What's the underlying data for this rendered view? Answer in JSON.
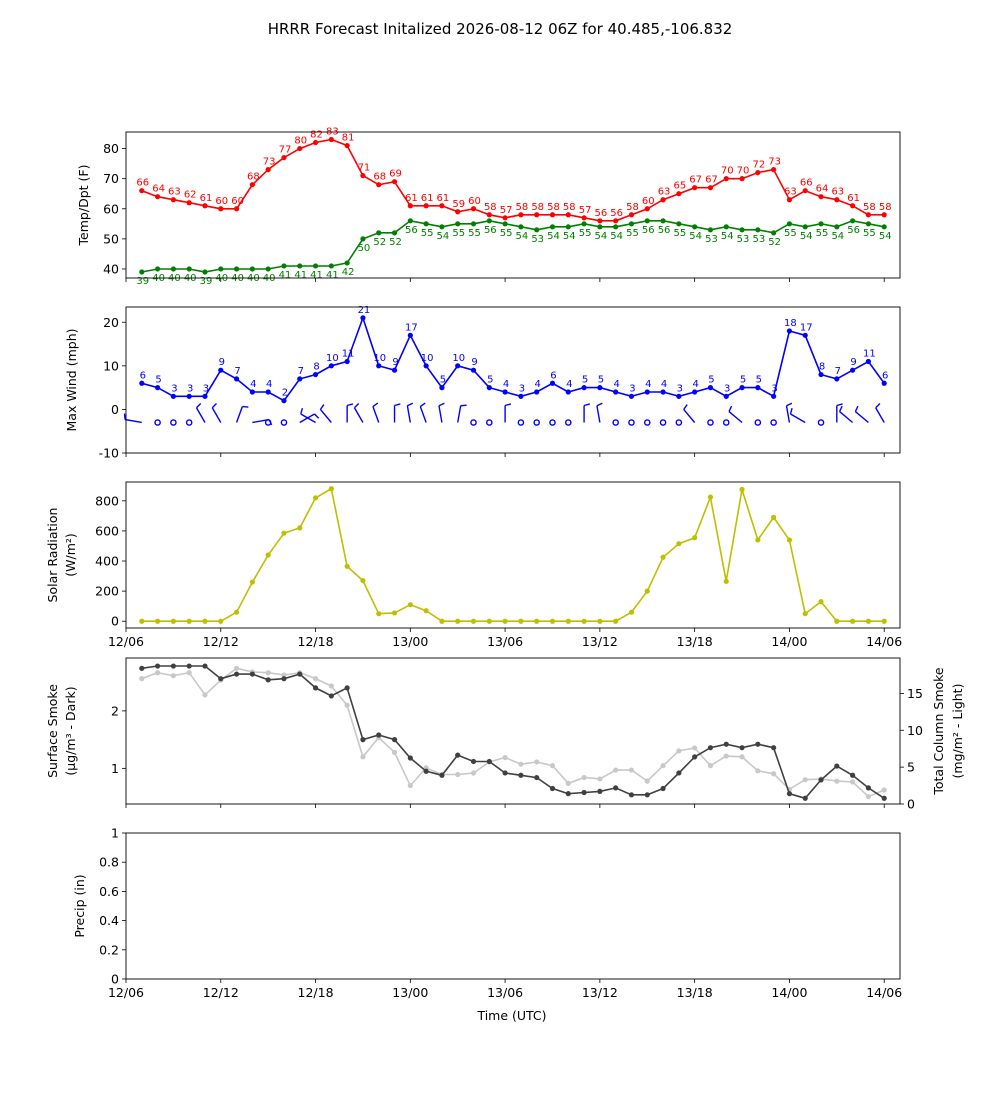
{
  "title": "HRRR Forecast Initalized 2026-08-12 06Z for 40.485,-106.832",
  "x_tick_labels": [
    "12/06",
    "12/12",
    "12/18",
    "13/00",
    "13/06",
    "13/12",
    "13/18",
    "14/00",
    "14/06"
  ],
  "x_axis_label": "Time (UTC)",
  "colors": {
    "temp": "#ff0000",
    "dewpoint": "#008000",
    "wind": "#0000ff",
    "solar": "#bfbf00",
    "smoke_surface": "#404040",
    "smoke_column": "#c8c8c8"
  },
  "chart_data": [
    {
      "type": "line",
      "panel": "temperature",
      "ylabel": "Temp/Dpt (F)",
      "ylim": [
        37,
        85.5
      ],
      "yticks": [
        40,
        50,
        60,
        70,
        80
      ],
      "x_hours": [
        1,
        2,
        3,
        4,
        5,
        6,
        7,
        8,
        9,
        10,
        11,
        12,
        13,
        14,
        15,
        16,
        17,
        18,
        19,
        20,
        21,
        22,
        23,
        24,
        25,
        26,
        27,
        28,
        29,
        30,
        31,
        32,
        33,
        34,
        35,
        36,
        37,
        38,
        39,
        40,
        41,
        42,
        43,
        44,
        45,
        46,
        47,
        48
      ],
      "series": [
        {
          "key": "temp",
          "labels_position": "above",
          "values": [
            66,
            64,
            63,
            62,
            61,
            60,
            60,
            68,
            73,
            77,
            80,
            82,
            83,
            81,
            71,
            68,
            69,
            61,
            61,
            61,
            59,
            60,
            58,
            57,
            58,
            58,
            58,
            58,
            57,
            56,
            56,
            58,
            60,
            63,
            65,
            67,
            67,
            70,
            70,
            72,
            73,
            63,
            66,
            64,
            63,
            61,
            58,
            58
          ]
        },
        {
          "key": "dewpoint",
          "labels_position": "below",
          "values": [
            39,
            40,
            40,
            40,
            39,
            40,
            40,
            40,
            40,
            41,
            41,
            41,
            41,
            42,
            50,
            52,
            52,
            56,
            55,
            54,
            55,
            55,
            56,
            55,
            54,
            53,
            54,
            54,
            55,
            54,
            54,
            55,
            56,
            56,
            55,
            54,
            53,
            54,
            53,
            53,
            52,
            55,
            54,
            55,
            54,
            56,
            55,
            54
          ]
        }
      ]
    },
    {
      "type": "line",
      "panel": "wind",
      "ylabel": "Max Wind (mph)",
      "ylim": [
        -10,
        23.5
      ],
      "yticks": [
        -10,
        0,
        10,
        20
      ],
      "x_hours": [
        1,
        2,
        3,
        4,
        5,
        6,
        7,
        8,
        9,
        10,
        11,
        12,
        13,
        14,
        15,
        16,
        17,
        18,
        19,
        20,
        21,
        22,
        23,
        24,
        25,
        26,
        27,
        28,
        29,
        30,
        31,
        32,
        33,
        34,
        35,
        36,
        37,
        38,
        39,
        40,
        41,
        42,
        43,
        44,
        45,
        46,
        47,
        48
      ],
      "series": [
        {
          "key": "wind",
          "labels_position": "above",
          "values": [
            6,
            5,
            3,
            3,
            3,
            9,
            7,
            4,
            4,
            2,
            7,
            8,
            10,
            11,
            21,
            10,
            9,
            17,
            10,
            5,
            10,
            9,
            5,
            4,
            3,
            4,
            6,
            4,
            5,
            5,
            4,
            3,
            4,
            4,
            3,
            4,
            5,
            3,
            5,
            5,
            3,
            18,
            17,
            8,
            7,
            9,
            11,
            6
          ]
        }
      ],
      "barb_directions_deg": [
        280,
        0,
        0,
        0,
        330,
        330,
        20,
        80,
        0,
        0,
        60,
        300,
        320,
        0,
        330,
        340,
        0,
        350,
        340,
        350,
        10,
        0,
        0,
        0,
        0,
        0,
        0,
        0,
        0,
        350,
        0,
        0,
        0,
        0,
        0,
        320,
        0,
        0,
        310,
        0,
        0,
        350,
        300,
        330,
        0,
        310,
        310,
        330
      ],
      "barb_calm": [
        false,
        true,
        true,
        true,
        false,
        false,
        false,
        false,
        true,
        true,
        false,
        false,
        false,
        false,
        false,
        false,
        false,
        false,
        false,
        false,
        false,
        true,
        true,
        false,
        true,
        true,
        true,
        true,
        false,
        false,
        true,
        true,
        true,
        true,
        true,
        false,
        true,
        true,
        false,
        true,
        true,
        false,
        false,
        true,
        false,
        false,
        false,
        false
      ]
    },
    {
      "type": "line",
      "panel": "solar",
      "ylabel": "Solar Radiation",
      "ylabel_units": "(W/m²)",
      "ylim": [
        -45,
        925
      ],
      "yticks": [
        0,
        200,
        400,
        600,
        800
      ],
      "x_hours": [
        1,
        2,
        3,
        4,
        5,
        6,
        7,
        8,
        9,
        10,
        11,
        12,
        13,
        14,
        15,
        16,
        17,
        18,
        19,
        20,
        21,
        22,
        23,
        24,
        25,
        26,
        27,
        28,
        29,
        30,
        31,
        32,
        33,
        34,
        35,
        36,
        37,
        38,
        39,
        40,
        41,
        42,
        43,
        44,
        45,
        46,
        47,
        48
      ],
      "series": [
        {
          "key": "solar",
          "values": [
            0,
            0,
            0,
            0,
            0,
            0,
            60,
            260,
            440,
            585,
            620,
            820,
            880,
            365,
            270,
            50,
            55,
            110,
            70,
            0,
            0,
            0,
            0,
            0,
            0,
            0,
            0,
            0,
            0,
            0,
            0,
            60,
            200,
            425,
            515,
            555,
            825,
            265,
            875,
            540,
            690,
            540,
            50,
            130,
            0,
            0,
            0,
            0
          ]
        }
      ]
    },
    {
      "type": "line",
      "panel": "smoke",
      "ylabel": "Surface Smoke",
      "ylabel_units": "(μg/m³ - Dark)",
      "ylim": [
        0.38,
        2.92
      ],
      "yticks": [
        1,
        2
      ],
      "ylabel_right": "Total Column Smoke",
      "ylabel_right_units": "(mg/m² - Light)",
      "ylim_right": [
        0,
        19.8
      ],
      "yticks_right": [
        0,
        5,
        10,
        15
      ],
      "x_hours": [
        1,
        2,
        3,
        4,
        5,
        6,
        7,
        8,
        9,
        10,
        11,
        12,
        13,
        14,
        15,
        16,
        17,
        18,
        19,
        20,
        21,
        22,
        23,
        24,
        25,
        26,
        27,
        28,
        29,
        30,
        31,
        32,
        33,
        34,
        35,
        36,
        37,
        38,
        39,
        40,
        41,
        42,
        43,
        44,
        45,
        46,
        47,
        48
      ],
      "series": [
        {
          "key": "smoke_surface",
          "axis": "left",
          "values": [
            2.74,
            2.78,
            2.78,
            2.78,
            2.78,
            2.56,
            2.64,
            2.64,
            2.54,
            2.56,
            2.64,
            2.4,
            2.26,
            2.4,
            1.5,
            1.58,
            1.5,
            1.18,
            0.95,
            0.88,
            1.23,
            1.12,
            1.12,
            0.92,
            0.88,
            0.84,
            0.65,
            0.56,
            0.58,
            0.6,
            0.66,
            0.54,
            0.54,
            0.65,
            0.92,
            1.2,
            1.36,
            1.42,
            1.36,
            1.42,
            1.36,
            0.56,
            0.48,
            0.8,
            1.04,
            0.88,
            0.66,
            0.48
          ]
        },
        {
          "key": "smoke_column",
          "axis": "right",
          "values": [
            17.0,
            17.8,
            17.4,
            17.8,
            14.8,
            16.8,
            18.4,
            17.9,
            17.8,
            17.5,
            17.8,
            17.0,
            16.0,
            13.4,
            6.4,
            9.0,
            7.0,
            2.5,
            4.9,
            4.0,
            4.0,
            4.2,
            5.7,
            6.3,
            5.4,
            5.7,
            5.2,
            2.8,
            3.6,
            3.4,
            4.6,
            4.6,
            3.1,
            5.2,
            7.2,
            7.6,
            5.2,
            6.5,
            6.4,
            4.5,
            4.1,
            2.0,
            3.3,
            3.4,
            3.1,
            3.0,
            1.0,
            1.9
          ]
        }
      ]
    },
    {
      "type": "line",
      "panel": "precip",
      "ylabel": "Precip (in)",
      "ylim": [
        0,
        1
      ],
      "yticks": [
        0.0,
        0.2,
        0.4,
        0.6,
        0.8,
        1.0
      ],
      "series": []
    }
  ]
}
